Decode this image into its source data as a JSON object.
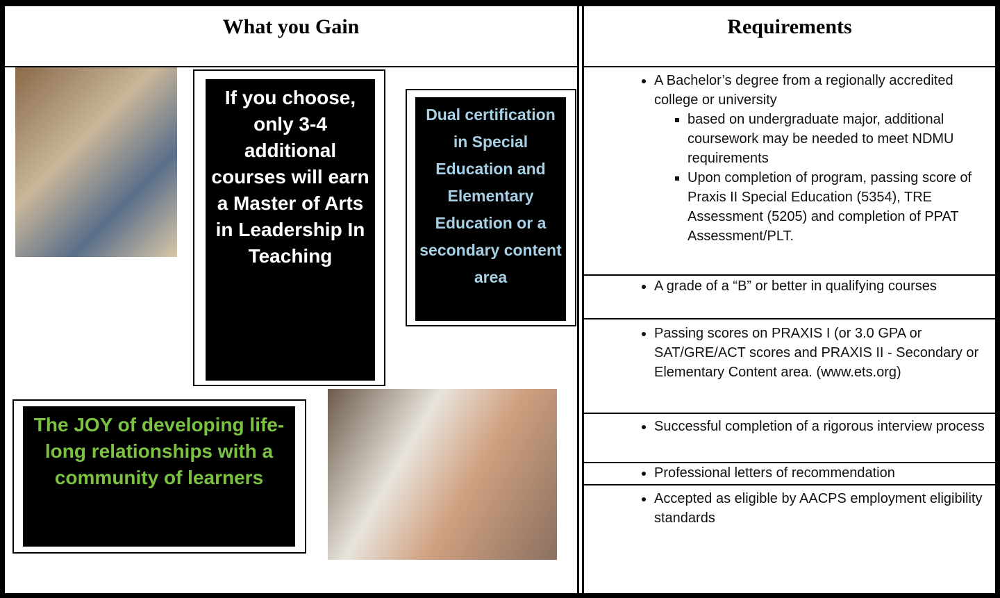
{
  "left": {
    "header": "What you Gain",
    "boxes": [
      "If you choose, only 3-4 additional courses will earn a Master of Arts in Leadership In Teaching",
      "Dual certification in Special Education and Elementary Education or a secondary content area",
      "The JOY of developing life-long relationships with a community of learners"
    ]
  },
  "right": {
    "header": "Requirements",
    "items": [
      {
        "text": "A Bachelor’s degree from a regionally accredited college or university",
        "subitems": [
          "based on undergraduate major, additional coursework may be needed to meet NDMU requirements",
          "Upon completion of program, passing score of Praxis II Special Education (5354), TRE Assessment (5205) and completion of PPAT Assessment/PLT."
        ]
      },
      {
        "text": "A grade of a “B” or better in qualifying courses"
      },
      {
        "text": "Passing scores on PRAXIS I (or 3.0 GPA or SAT/GRE/ACT scores and PRAXIS II - Secondary or Elementary Content area. (www.ets.org)"
      },
      {
        "text": "Successful completion of a rigorous interview process"
      },
      {
        "text": "Professional letters of recommendation"
      },
      {
        "text": "Accepted as eligible by AACPS employment eligibility standards"
      }
    ]
  }
}
